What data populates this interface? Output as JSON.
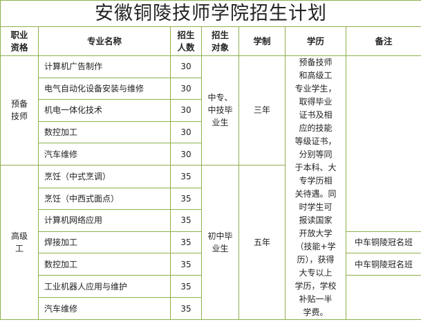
{
  "title": "安徽铜陵技师学院招生计划",
  "headers": {
    "qualification": "职业\n资格",
    "major": "专业名称",
    "count": "招生\n人数",
    "target": "招生\n对象",
    "duration": "学制",
    "education": "学历",
    "notes": "备注"
  },
  "groups": [
    {
      "qualification": "预备\n技师",
      "target": "中专、\n中技毕\n业生",
      "duration": "三年",
      "rows": [
        {
          "major": "计算机广告制作",
          "count": "30"
        },
        {
          "major": "电气自动化设备安装与维修",
          "count": "30"
        },
        {
          "major": "机电一体化技术",
          "count": "30"
        },
        {
          "major": "数控加工",
          "count": "30"
        },
        {
          "major": "汽车维修",
          "count": "30"
        }
      ]
    },
    {
      "qualification": "高级\n工",
      "target": "初中毕\n业生",
      "duration": "五年",
      "rows": [
        {
          "major": "烹饪（中式烹调）",
          "count": "35"
        },
        {
          "major": "烹饪（中西式面点）",
          "count": "35"
        },
        {
          "major": "计算机网络应用",
          "count": "35"
        },
        {
          "major": "焊接加工",
          "count": "35"
        },
        {
          "major": "数控加工",
          "count": "35"
        },
        {
          "major": "工业机器人应用与维护",
          "count": "35"
        },
        {
          "major": "汽车维修",
          "count": "35"
        }
      ]
    }
  ],
  "education": "预备技师\n和高级工\n专业学生，\n取得毕业\n证书及相\n应的技能\n等级证书，\n分别等同\n于本科、大\n专学历相\n关待遇。同\n时学生可\n报读国家\n开放大学\n（技能+学\n历），获得\n大专以上\n学历，学校\n补贴一半\n学费。",
  "notes": [
    "中车铜陵冠名班",
    "中车铜陵冠名班"
  ],
  "colors": {
    "border": "#8db04c"
  }
}
